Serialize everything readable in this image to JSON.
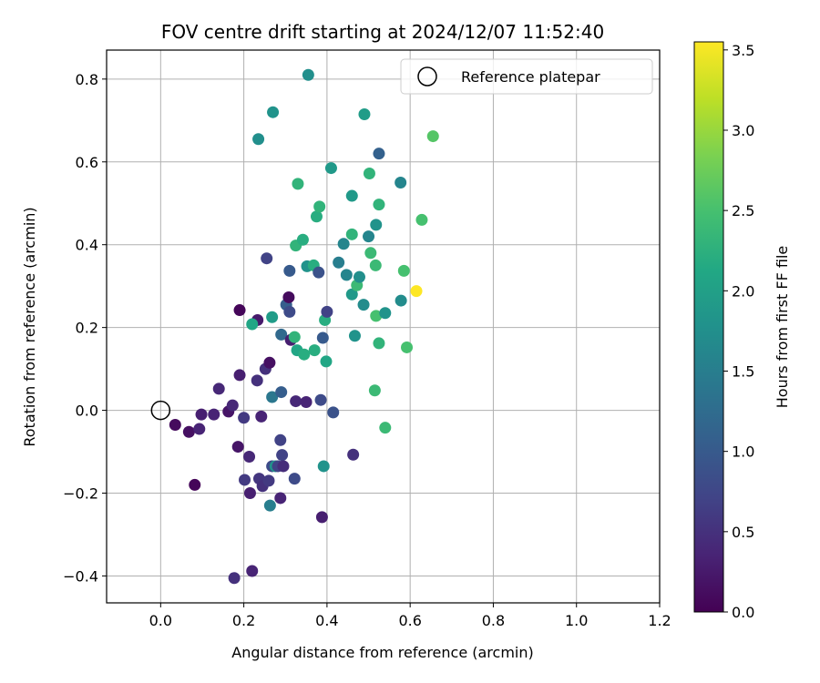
{
  "chart_data": {
    "type": "scatter",
    "title": "FOV centre drift starting at 2024/12/07 11:52:40",
    "xlabel": "Angular distance from reference (arcmin)",
    "ylabel": "Rotation from reference (arcmin)",
    "xlim": [
      -0.13,
      1.2
    ],
    "ylim": [
      -0.465,
      0.87
    ],
    "xticks": [
      0.0,
      0.2,
      0.4,
      0.6,
      0.8,
      1.0,
      1.2
    ],
    "xtick_labels": [
      "0.0",
      "0.2",
      "0.4",
      "0.6",
      "0.8",
      "1.0",
      "1.2"
    ],
    "yticks": [
      -0.4,
      -0.2,
      0.0,
      0.2,
      0.4,
      0.6,
      0.8
    ],
    "ytick_labels": [
      "−0.4",
      "−0.2",
      "0.0",
      "0.2",
      "0.4",
      "0.6",
      "0.8"
    ],
    "grid": true,
    "legend": {
      "position": "top-right",
      "entries": [
        "Reference platepar"
      ]
    },
    "reference_point": {
      "x": 0.0,
      "y": 0.0,
      "label": "Reference platepar"
    },
    "colorbar": {
      "label": "Hours from first FF file",
      "colormap": "viridis",
      "range": [
        0.0,
        3.55
      ],
      "ticks": [
        0.0,
        0.5,
        1.0,
        1.5,
        2.0,
        2.5,
        3.0,
        3.5
      ],
      "tick_labels": [
        "0.0",
        "0.5",
        "1.0",
        "1.5",
        "2.0",
        "2.5",
        "3.0",
        "3.5"
      ]
    },
    "points": [
      {
        "x": 0.035,
        "y": -0.035,
        "c": 0.1
      },
      {
        "x": 0.068,
        "y": -0.052,
        "c": 0.15
      },
      {
        "x": 0.093,
        "y": -0.045,
        "c": 0.35
      },
      {
        "x": 0.098,
        "y": -0.01,
        "c": 0.3
      },
      {
        "x": 0.082,
        "y": -0.18,
        "c": 0.05
      },
      {
        "x": 0.128,
        "y": -0.01,
        "c": 0.35
      },
      {
        "x": 0.14,
        "y": 0.052,
        "c": 0.4
      },
      {
        "x": 0.163,
        "y": -0.003,
        "c": 0.2
      },
      {
        "x": 0.173,
        "y": 0.012,
        "c": 0.4
      },
      {
        "x": 0.19,
        "y": 0.085,
        "c": 0.3
      },
      {
        "x": 0.19,
        "y": 0.242,
        "c": 0.05
      },
      {
        "x": 0.186,
        "y": -0.088,
        "c": 0.2
      },
      {
        "x": 0.2,
        "y": -0.018,
        "c": 0.6
      },
      {
        "x": 0.202,
        "y": -0.168,
        "c": 0.6
      },
      {
        "x": 0.213,
        "y": -0.112,
        "c": 0.4
      },
      {
        "x": 0.215,
        "y": -0.2,
        "c": 0.3
      },
      {
        "x": 0.22,
        "y": -0.388,
        "c": 0.35
      },
      {
        "x": 0.177,
        "y": -0.405,
        "c": 0.5
      },
      {
        "x": 0.232,
        "y": 0.072,
        "c": 0.5
      },
      {
        "x": 0.233,
        "y": 0.218,
        "c": 0.25
      },
      {
        "x": 0.237,
        "y": -0.165,
        "c": 0.55
      },
      {
        "x": 0.242,
        "y": -0.015,
        "c": 0.35
      },
      {
        "x": 0.245,
        "y": -0.183,
        "c": 0.5
      },
      {
        "x": 0.252,
        "y": 0.1,
        "c": 0.5
      },
      {
        "x": 0.262,
        "y": 0.115,
        "c": 0.15
      },
      {
        "x": 0.26,
        "y": -0.17,
        "c": 0.6
      },
      {
        "x": 0.255,
        "y": 0.367,
        "c": 0.7
      },
      {
        "x": 0.22,
        "y": 0.208,
        "c": 2.1
      },
      {
        "x": 0.268,
        "y": 0.032,
        "c": 1.4
      },
      {
        "x": 0.268,
        "y": -0.135,
        "c": 0.8
      },
      {
        "x": 0.268,
        "y": 0.225,
        "c": 1.95
      },
      {
        "x": 0.276,
        "y": -0.135,
        "c": 1.8
      },
      {
        "x": 0.282,
        "y": -0.135,
        "c": 0.7
      },
      {
        "x": 0.288,
        "y": -0.072,
        "c": 0.7
      },
      {
        "x": 0.29,
        "y": 0.044,
        "c": 1.05
      },
      {
        "x": 0.292,
        "y": -0.108,
        "c": 0.7
      },
      {
        "x": 0.295,
        "y": -0.135,
        "c": 0.45
      },
      {
        "x": 0.288,
        "y": -0.212,
        "c": 0.35
      },
      {
        "x": 0.263,
        "y": -0.23,
        "c": 1.5
      },
      {
        "x": 0.29,
        "y": 0.183,
        "c": 1.2
      },
      {
        "x": 0.302,
        "y": 0.255,
        "c": 1.05
      },
      {
        "x": 0.308,
        "y": 0.273,
        "c": 0.1
      },
      {
        "x": 0.31,
        "y": 0.238,
        "c": 0.8
      },
      {
        "x": 0.31,
        "y": 0.337,
        "c": 1.0
      },
      {
        "x": 0.313,
        "y": 0.17,
        "c": 0.3
      },
      {
        "x": 0.322,
        "y": 0.177,
        "c": 2.3
      },
      {
        "x": 0.322,
        "y": -0.165,
        "c": 0.8
      },
      {
        "x": 0.325,
        "y": 0.022,
        "c": 0.4
      },
      {
        "x": 0.328,
        "y": 0.145,
        "c": 2.1
      },
      {
        "x": 0.345,
        "y": 0.135,
        "c": 2.2
      },
      {
        "x": 0.35,
        "y": 0.02,
        "c": 0.35
      },
      {
        "x": 0.325,
        "y": 0.398,
        "c": 2.3
      },
      {
        "x": 0.342,
        "y": 0.412,
        "c": 2.2
      },
      {
        "x": 0.352,
        "y": 0.348,
        "c": 1.8
      },
      {
        "x": 0.368,
        "y": 0.35,
        "c": 2.2
      },
      {
        "x": 0.37,
        "y": 0.145,
        "c": 2.2
      },
      {
        "x": 0.38,
        "y": 0.333,
        "c": 0.9
      },
      {
        "x": 0.385,
        "y": 0.025,
        "c": 0.8
      },
      {
        "x": 0.388,
        "y": -0.258,
        "c": 0.3
      },
      {
        "x": 0.39,
        "y": 0.175,
        "c": 1.0
      },
      {
        "x": 0.392,
        "y": -0.135,
        "c": 1.8
      },
      {
        "x": 0.395,
        "y": 0.218,
        "c": 2.2
      },
      {
        "x": 0.398,
        "y": 0.118,
        "c": 2.1
      },
      {
        "x": 0.4,
        "y": 0.238,
        "c": 0.7
      },
      {
        "x": 0.415,
        "y": -0.005,
        "c": 0.9
      },
      {
        "x": 0.33,
        "y": 0.547,
        "c": 2.3
      },
      {
        "x": 0.375,
        "y": 0.468,
        "c": 2.2
      },
      {
        "x": 0.382,
        "y": 0.492,
        "c": 2.3
      },
      {
        "x": 0.41,
        "y": 0.585,
        "c": 1.9
      },
      {
        "x": 0.428,
        "y": 0.357,
        "c": 1.5
      },
      {
        "x": 0.44,
        "y": 0.402,
        "c": 1.6
      },
      {
        "x": 0.447,
        "y": 0.327,
        "c": 1.6
      },
      {
        "x": 0.46,
        "y": 0.425,
        "c": 2.3
      },
      {
        "x": 0.46,
        "y": 0.518,
        "c": 1.9
      },
      {
        "x": 0.46,
        "y": 0.28,
        "c": 1.9
      },
      {
        "x": 0.463,
        "y": -0.107,
        "c": 0.5
      },
      {
        "x": 0.467,
        "y": 0.18,
        "c": 1.8
      },
      {
        "x": 0.472,
        "y": 0.302,
        "c": 2.4
      },
      {
        "x": 0.478,
        "y": 0.322,
        "c": 1.75
      },
      {
        "x": 0.488,
        "y": 0.255,
        "c": 1.7
      },
      {
        "x": 0.49,
        "y": 0.715,
        "c": 1.95
      },
      {
        "x": 0.5,
        "y": 0.42,
        "c": 1.6
      },
      {
        "x": 0.502,
        "y": 0.572,
        "c": 2.3
      },
      {
        "x": 0.505,
        "y": 0.38,
        "c": 2.4
      },
      {
        "x": 0.515,
        "y": 0.048,
        "c": 2.4
      },
      {
        "x": 0.517,
        "y": 0.35,
        "c": 2.4
      },
      {
        "x": 0.518,
        "y": 0.448,
        "c": 1.8
      },
      {
        "x": 0.518,
        "y": 0.228,
        "c": 2.5
      },
      {
        "x": 0.525,
        "y": 0.62,
        "c": 1.1
      },
      {
        "x": 0.525,
        "y": 0.497,
        "c": 2.3
      },
      {
        "x": 0.525,
        "y": 0.162,
        "c": 2.3
      },
      {
        "x": 0.54,
        "y": 0.235,
        "c": 1.8
      },
      {
        "x": 0.54,
        "y": -0.042,
        "c": 2.4
      },
      {
        "x": 0.577,
        "y": 0.55,
        "c": 1.6
      },
      {
        "x": 0.578,
        "y": 0.265,
        "c": 1.7
      },
      {
        "x": 0.585,
        "y": 0.337,
        "c": 2.5
      },
      {
        "x": 0.592,
        "y": 0.152,
        "c": 2.5
      },
      {
        "x": 0.615,
        "y": 0.288,
        "c": 3.55
      },
      {
        "x": 0.628,
        "y": 0.46,
        "c": 2.5
      },
      {
        "x": 0.655,
        "y": 0.662,
        "c": 2.6
      },
      {
        "x": 0.235,
        "y": 0.655,
        "c": 1.75
      },
      {
        "x": 0.27,
        "y": 0.72,
        "c": 1.8
      },
      {
        "x": 0.355,
        "y": 0.81,
        "c": 1.75
      }
    ]
  }
}
